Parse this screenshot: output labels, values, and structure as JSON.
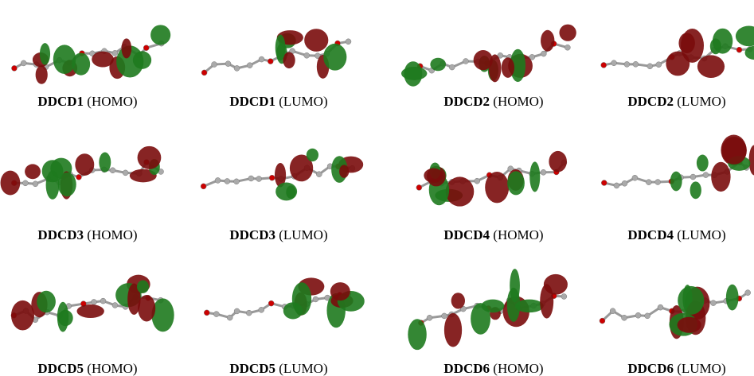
{
  "panels": [
    {
      "compound": "DDCD1",
      "orbital": "(HOMO)"
    },
    {
      "compound": "DDCD1",
      "orbital": "(LUMO)"
    },
    {
      "compound": "DDCD2",
      "orbital": "(HOMO)"
    },
    {
      "compound": "DDCD2",
      "orbital": "(LUMO)"
    },
    {
      "compound": "DDCD3",
      "orbital": "(HOMO)"
    },
    {
      "compound": "DDCD3",
      "orbital": "(LUMO)"
    },
    {
      "compound": "DDCD4",
      "orbital": "(HOMO)"
    },
    {
      "compound": "DDCD4",
      "orbital": "(LUMO)"
    },
    {
      "compound": "DDCD5",
      "orbital": "(HOMO)"
    },
    {
      "compound": "DDCD5",
      "orbital": "(LUMO)"
    },
    {
      "compound": "DDCD6",
      "orbital": "(HOMO)"
    },
    {
      "compound": "DDCD6",
      "orbital": "(LUMO)"
    }
  ]
}
